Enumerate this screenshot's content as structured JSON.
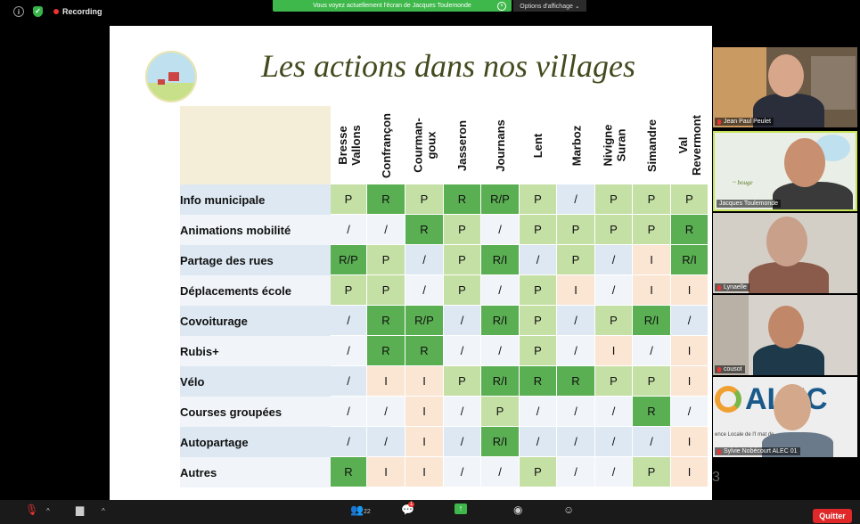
{
  "top": {
    "info_icon": "info-icon",
    "security_icon": "shield-check-icon",
    "recording": "Recording",
    "banner": "Vous voyez actuellement l'écran de Jacques Toulemonde",
    "options": "Options d'affichage ⌄"
  },
  "slide": {
    "title": "Les actions dans nos villages",
    "page": "3",
    "columns": [
      "Bresse\nVallons",
      "Confrançon",
      "Courman-\ngoux",
      "Jasseron",
      "Journans",
      "Lent",
      "Marboz",
      "Nivigne\nSuran",
      "Simandre",
      "Val\nRevermont"
    ],
    "rows": [
      {
        "label": "Info municipale",
        "cells": [
          "P",
          "R",
          "P",
          "R",
          "R/P",
          "P",
          "/",
          "P",
          "P",
          "P"
        ]
      },
      {
        "label": "Animations mobilité",
        "cells": [
          "/",
          "/",
          "R",
          "P",
          "/",
          "P",
          "P",
          "P",
          "P",
          "R"
        ]
      },
      {
        "label": "Partage des rues",
        "cells": [
          "R/P",
          "P",
          "/",
          "P",
          "R/I",
          "/",
          "P",
          "/",
          "I",
          "R/I"
        ]
      },
      {
        "label": "Déplacements école",
        "cells": [
          "P",
          "P",
          "/",
          "P",
          "/",
          "P",
          "I",
          "/",
          "I",
          "I"
        ]
      },
      {
        "label": "Covoiturage",
        "cells": [
          "/",
          "R",
          "R/P",
          "/",
          "R/I",
          "P",
          "/",
          "P",
          "R/I",
          "/"
        ]
      },
      {
        "label": "Rubis+",
        "cells": [
          "/",
          "R",
          "R",
          "/",
          "/",
          "P",
          "/",
          "I",
          "/",
          "I"
        ]
      },
      {
        "label": "Vélo",
        "cells": [
          "/",
          "I",
          "I",
          "P",
          "R/I",
          "R",
          "R",
          "P",
          "P",
          "I"
        ]
      },
      {
        "label": "Courses groupées",
        "cells": [
          "/",
          "/",
          "I",
          "/",
          "P",
          "/",
          "/",
          "/",
          "R",
          "/"
        ]
      },
      {
        "label": "Autopartage",
        "cells": [
          "/",
          "/",
          "I",
          "/",
          "R/I",
          "/",
          "/",
          "/",
          "/",
          "I"
        ]
      },
      {
        "label": "Autres",
        "cells": [
          "R",
          "I",
          "I",
          "/",
          "/",
          "P",
          "/",
          "/",
          "P",
          "I"
        ]
      }
    ]
  },
  "participants": [
    {
      "name": "Jean Paul Peulet"
    },
    {
      "name": "Jacques Toulemonde"
    },
    {
      "name": "Lynaelle"
    },
    {
      "name": "cousot"
    },
    {
      "name": "Sylvie Nobécourt ALEC 01",
      "logo_text": "ALEC",
      "logo_sub": "ence Locale de l'I  mat de"
    }
  ],
  "bottom": {
    "participants_count": "22",
    "chat_badge": "1",
    "quit": "Quitter"
  },
  "colors": {
    "R": "#5aaf52",
    "P": "#c5e0a5",
    "I": "#fbe6d4",
    "slash_even": "#dde8f2",
    "slash_odd": "#f1f5f9"
  }
}
